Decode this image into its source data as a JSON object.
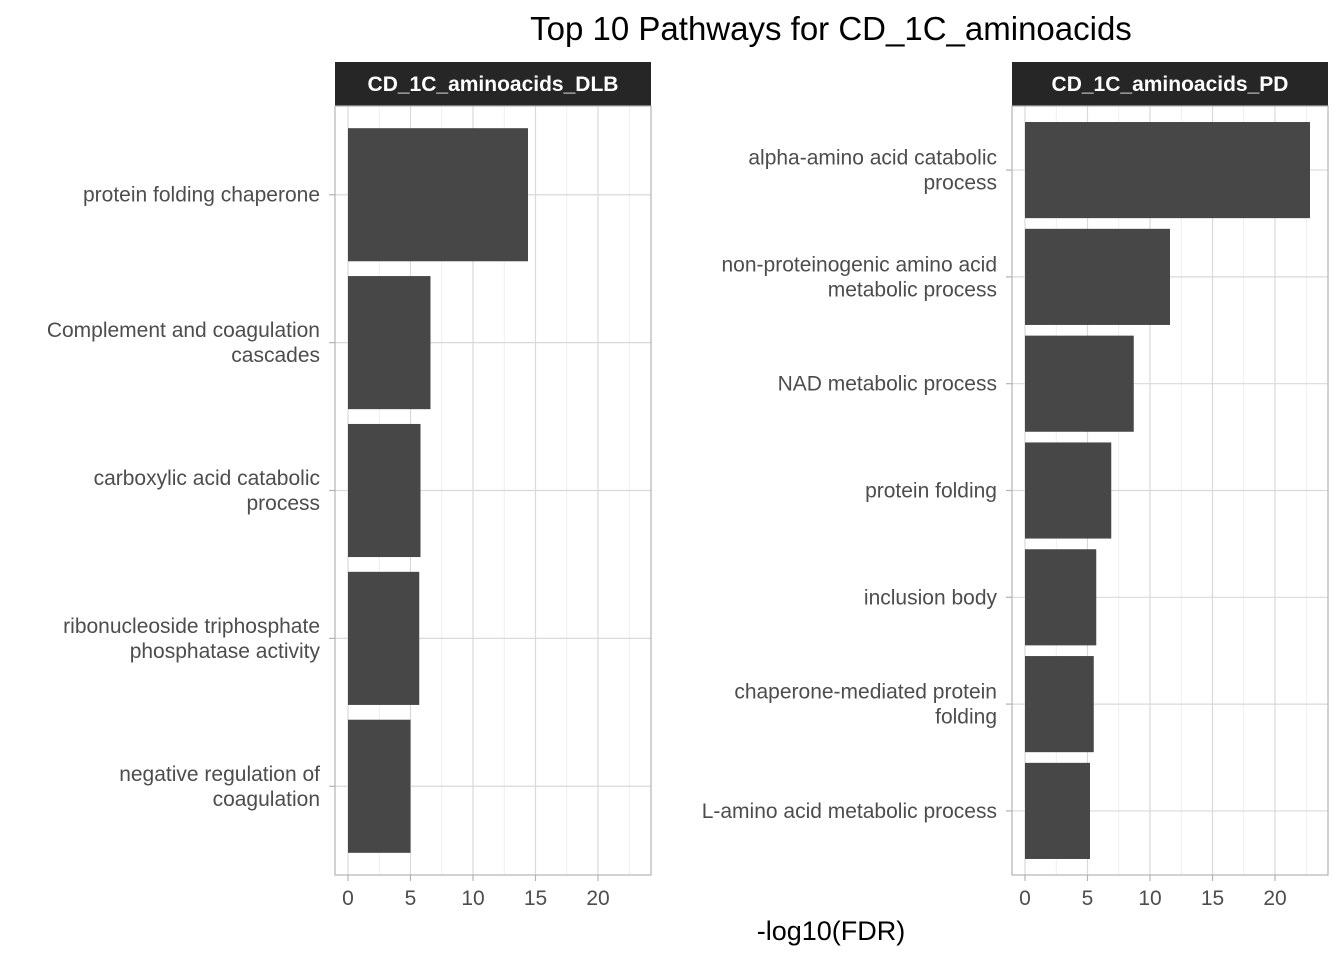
{
  "chart_data": {
    "type": "bar",
    "orientation": "horizontal",
    "title": "Top 10 Pathways for CD_1C_aminoacids",
    "xlabel": "-log10(FDR)",
    "ylabel": "",
    "xlim": [
      0,
      23.2
    ],
    "xticks": [
      0,
      5,
      10,
      15,
      20
    ],
    "grid": true,
    "bar_color": "#474747",
    "strip_color": "#262626",
    "panels": [
      {
        "name": "CD_1C_aminoacids_DLB",
        "categories": [
          [
            "protein folding chaperone"
          ],
          [
            "Complement and coagulation",
            "cascades"
          ],
          [
            "carboxylic acid catabolic",
            "process"
          ],
          [
            "ribonucleoside triphosphate",
            "phosphatase activity"
          ],
          [
            "negative regulation of",
            "coagulation"
          ]
        ],
        "values": [
          14.4,
          6.6,
          5.8,
          5.7,
          5.0
        ]
      },
      {
        "name": "CD_1C_aminoacids_PD",
        "categories": [
          [
            "alpha-amino acid catabolic",
            "process"
          ],
          [
            "non-proteinogenic amino acid",
            "metabolic process"
          ],
          [
            "NAD metabolic process"
          ],
          [
            "protein folding"
          ],
          [
            "inclusion body"
          ],
          [
            "chaperone-mediated protein",
            "folding"
          ],
          [
            "L-amino acid metabolic process"
          ]
        ],
        "values": [
          22.8,
          11.6,
          8.7,
          6.9,
          5.7,
          5.5,
          5.2
        ]
      }
    ]
  }
}
